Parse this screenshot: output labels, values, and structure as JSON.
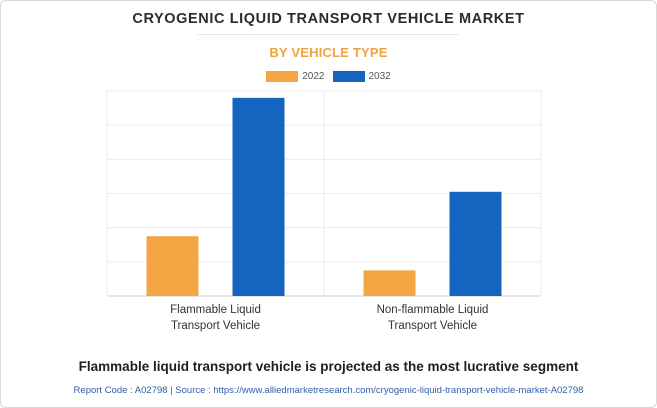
{
  "header": {
    "title": "CRYOGENIC LIQUID TRANSPORT VEHICLE MARKET",
    "subtitle": "BY VEHICLE TYPE"
  },
  "legend": {
    "items": [
      {
        "label": "2022",
        "color": "#f2a541"
      },
      {
        "label": "2032",
        "color": "#1565c0"
      }
    ]
  },
  "chart_data": {
    "type": "bar",
    "title": "CRYOGENIC LIQUID TRANSPORT VEHICLE MARKET",
    "subtitle": "BY VEHICLE TYPE",
    "categories": [
      "Flammable Liquid Transport Vehicle",
      "Non-flammable Liquid Transport Vehicle"
    ],
    "category_lines": [
      [
        "Flammable Liquid",
        "Transport Vehicle"
      ],
      [
        "Non-flammable Liquid",
        "Transport Vehicle"
      ]
    ],
    "series": [
      {
        "name": "2022",
        "color": "#f2a541",
        "values": [
          1.75,
          0.75
        ]
      },
      {
        "name": "2032",
        "color": "#1565c0",
        "values": [
          5.8,
          3.05
        ]
      }
    ],
    "ylim": [
      0,
      6
    ],
    "gridlines": 6,
    "grid": true,
    "legend_position": "top-center",
    "xlabel": "",
    "ylabel": ""
  },
  "footer": {
    "statement": "Flammable liquid transport vehicle is projected as the most lucrative segment",
    "source": "Report Code : A02798  |  Source : https://www.alliedmarketresearch.com/cryogenic-liquid-transport-vehicle-market-A02798"
  }
}
